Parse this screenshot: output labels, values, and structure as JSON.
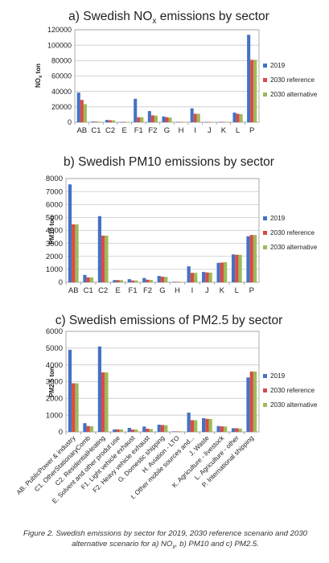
{
  "chart_data": [
    {
      "type": "bar",
      "title_main": "a) Swedish NO",
      "title_sub": "x",
      "title_tail": " emissions by sector",
      "ylabel_main": "NO",
      "ylabel_sub": "x",
      "ylabel_tail": " ton",
      "ylim": [
        0,
        120000
      ],
      "yticks": [
        "0",
        "20000",
        "40000",
        "60000",
        "80000",
        "100000",
        "120000"
      ],
      "grid": true,
      "legend": "right",
      "categories": [
        "AB",
        "C1",
        "C2",
        "E",
        "F1",
        "F2",
        "G",
        "H",
        "I",
        "J",
        "K",
        "L",
        "P"
      ],
      "series": [
        {
          "name": "2019",
          "color": "#4472c4",
          "values": [
            38500,
            1000,
            3000,
            200,
            30500,
            14500,
            7500,
            500,
            18000,
            200,
            500,
            12500,
            113500
          ]
        },
        {
          "name": "2030 reference",
          "color": "#d94b45",
          "values": [
            29000,
            800,
            2500,
            200,
            6500,
            9000,
            6500,
            500,
            11000,
            200,
            500,
            11000,
            81000
          ]
        },
        {
          "name": "2030 alternative",
          "color": "#9bbb59",
          "values": [
            23500,
            800,
            2500,
            200,
            6500,
            8500,
            6000,
            500,
            11000,
            200,
            500,
            10500,
            81000
          ]
        }
      ]
    },
    {
      "type": "bar",
      "title": "b) Swedish PM10 emissions by sector",
      "ylabel": "PM10 ton",
      "ylim": [
        0,
        8000
      ],
      "yticks": [
        "0",
        "1000",
        "2000",
        "3000",
        "4000",
        "5000",
        "6000",
        "7000",
        "8000"
      ],
      "grid": true,
      "legend": "right",
      "categories": [
        "AB",
        "C1",
        "C2",
        "E",
        "F1",
        "F2",
        "G",
        "H",
        "I",
        "J",
        "K",
        "L",
        "P"
      ],
      "series": [
        {
          "name": "2019",
          "color": "#4472c4",
          "values": [
            7550,
            570,
            5100,
            170,
            240,
            330,
            490,
            40,
            1230,
            800,
            1500,
            2150,
            3550
          ]
        },
        {
          "name": "2030 reference",
          "color": "#d94b45",
          "values": [
            4470,
            380,
            3600,
            170,
            140,
            200,
            430,
            40,
            730,
            760,
            1520,
            2120,
            3650
          ]
        },
        {
          "name": "2030 alternative",
          "color": "#9bbb59",
          "values": [
            4470,
            370,
            3600,
            170,
            140,
            180,
            420,
            40,
            730,
            750,
            1550,
            2120,
            3650
          ]
        }
      ]
    },
    {
      "type": "bar",
      "title": "c) Swedish emissions of PM2.5 by sector",
      "ylabel": "PM2.5 ton",
      "ylim": [
        0,
        6000
      ],
      "yticks": [
        "0",
        "1000",
        "2000",
        "3000",
        "4000",
        "5000",
        "6000"
      ],
      "grid": true,
      "legend": "right",
      "categories": [
        "AB. PublicPower & industry",
        "C1. OtherStationaryComb",
        "C2. ResidentialHeating",
        "E. Solvent and other produt use",
        "F1. Light vehicle exhaust",
        "F2. Heavy vehicle exhaust",
        "G. Domestic shipping",
        "H. Aviation - LTO",
        "I. Other mobile sources and...",
        "J. Waste",
        "K. Agriculture - livestock",
        "L. Agriculture - other",
        "P. International shipping"
      ],
      "series": [
        {
          "name": "2019",
          "color": "#4472c4",
          "values": [
            4900,
            520,
            5100,
            150,
            240,
            320,
            430,
            30,
            1150,
            820,
            350,
            220,
            3250
          ]
        },
        {
          "name": "2030 reference",
          "color": "#d94b45",
          "values": [
            2900,
            350,
            3550,
            150,
            140,
            190,
            410,
            30,
            700,
            780,
            330,
            220,
            3600
          ]
        },
        {
          "name": "2030 alternative",
          "color": "#9bbb59",
          "values": [
            2900,
            340,
            3550,
            150,
            140,
            170,
            400,
            30,
            700,
            770,
            320,
            200,
            3600
          ]
        }
      ]
    }
  ],
  "caption": {
    "line1": "Figure 2. Swedish emissions by sector for 2019, 2030 reference scenario and 2030",
    "line2_a": "alternative scenario for a) NO",
    "line2_sub": "x",
    "line2_b": ", b) PM10 and c) PM2.5."
  }
}
